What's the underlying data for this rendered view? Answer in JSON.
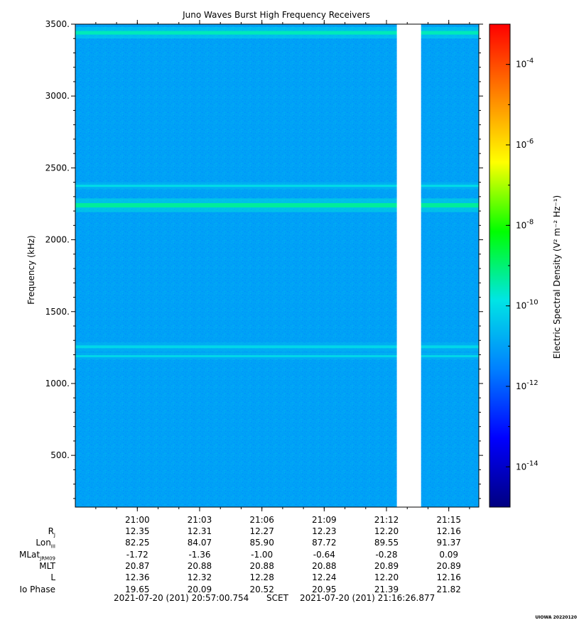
{
  "chart_data": {
    "type": "heatmap",
    "title": "Juno Waves Burst High Frequency Receivers",
    "ylabel": "Frequency (kHz)",
    "ylim": [
      140,
      3500
    ],
    "yticks": [
      500,
      1000,
      1500,
      2000,
      2500,
      3000,
      3500
    ],
    "ytick_labels": [
      "500.",
      "1000.",
      "1500.",
      "2000.",
      "2500.",
      "3000.",
      "3500."
    ],
    "x_time_range": [
      "20:57:00.754",
      "21:16:26.877"
    ],
    "xticks": [
      "21:00",
      "21:03",
      "21:06",
      "21:09",
      "21:12",
      "21:15"
    ],
    "data_gap": [
      "21:12:30",
      "21:13:40"
    ],
    "background_level": 1e-11,
    "bands": [
      {
        "center_khz": 3440,
        "width_khz": 25,
        "level": 3e-10
      },
      {
        "center_khz": 2375,
        "width_khz": 15,
        "level": 1e-10
      },
      {
        "center_khz": 2240,
        "width_khz": 30,
        "level": 5e-10
      },
      {
        "center_khz": 1255,
        "width_khz": 20,
        "level": 8e-11
      },
      {
        "center_khz": 1190,
        "width_khz": 15,
        "level": 8e-11
      }
    ],
    "colorbar": {
      "label": "Electric Spectral Density (V² m⁻² Hz⁻¹)",
      "scale": "log",
      "range": [
        1e-15,
        0.001
      ],
      "tick_labels": [
        {
          "mantissa": "10",
          "exp": "-4",
          "value": 0.0001
        },
        {
          "mantissa": "10",
          "exp": "-6",
          "value": 1e-06
        },
        {
          "mantissa": "10",
          "exp": "-8",
          "value": 1e-08
        },
        {
          "mantissa": "10",
          "exp": "-10",
          "value": 1e-10
        },
        {
          "mantissa": "10",
          "exp": "-12",
          "value": 1e-12
        },
        {
          "mantissa": "10",
          "exp": "-14",
          "value": 1e-14
        }
      ],
      "colors": [
        "#000080",
        "#0000ff",
        "#0080ff",
        "#00e5e5",
        "#00ff00",
        "#ffff00",
        "#ff8000",
        "#ff0000"
      ]
    }
  },
  "ephemeris": {
    "rows": [
      {
        "label": "R",
        "sub": "J",
        "values": [
          "12.35",
          "12.31",
          "12.27",
          "12.23",
          "12.20",
          "12.16"
        ]
      },
      {
        "label": "Lon",
        "sub": "III",
        "values": [
          "82.25",
          "84.07",
          "85.90",
          "87.72",
          "89.55",
          "91.37"
        ]
      },
      {
        "label": "MLat",
        "sub": "JRM09",
        "values": [
          "-1.72",
          "-1.36",
          "-1.00",
          "-0.64",
          "-0.28",
          "0.09"
        ]
      },
      {
        "label": "MLT",
        "sub": "",
        "values": [
          "20.87",
          "20.88",
          "20.88",
          "20.88",
          "20.89",
          "20.89"
        ]
      },
      {
        "label": "L",
        "sub": "",
        "values": [
          "12.36",
          "12.32",
          "12.28",
          "12.24",
          "12.20",
          "12.16"
        ]
      },
      {
        "label": "Io Phase",
        "sub": "",
        "values": [
          "19.65",
          "20.09",
          "20.52",
          "20.95",
          "21.39",
          "21.82"
        ]
      }
    ]
  },
  "footer": {
    "start": "2021-07-20 (201) 20:57:00.754",
    "middle": "SCET",
    "end": "2021-07-20 (201) 21:16:26.877"
  },
  "credit": "UIOWA 20220120"
}
